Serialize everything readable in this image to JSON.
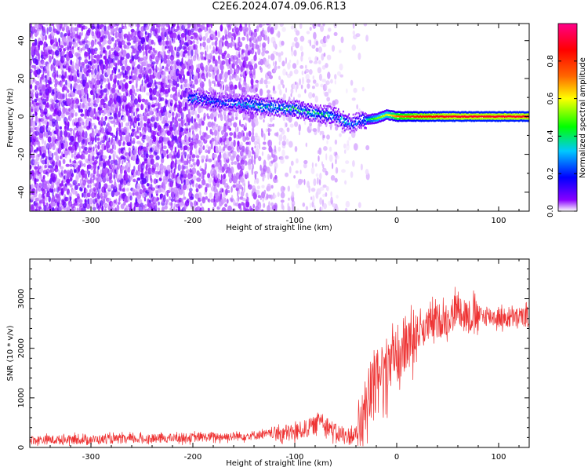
{
  "figure": {
    "title": "C2E6.2024.074.09.06.R13"
  },
  "chart_data": [
    {
      "type": "heatmap",
      "title": "C2E6.2024.074.09.06.R13",
      "xlabel": "Height of straight line (km)",
      "ylabel": "Frequency (Hz)",
      "xlim": [
        -360,
        130
      ],
      "ylim": [
        -50,
        49
      ],
      "xticks": [
        -300,
        -200,
        -100,
        0,
        100
      ],
      "yticks": [
        -40,
        -20,
        0,
        20,
        40
      ],
      "colorbar": {
        "label": "Normalized spectral amplitude",
        "range": [
          0,
          1
        ],
        "ticks": [
          "0.0",
          "0.2",
          "0.4",
          "0.6",
          "0.8"
        ],
        "colormap": [
          "#ffffff",
          "#8800ff",
          "#0000ff",
          "#00c8ff",
          "#00ff00",
          "#ffff00",
          "#ff6600",
          "#ff0000",
          "#ff00aa"
        ]
      },
      "ridge": {
        "x": [
          -205,
          -180,
          -160,
          -140,
          -120,
          -100,
          -85,
          -70,
          -60,
          -50,
          -45,
          -35,
          -20,
          -10,
          0,
          20,
          50,
          80,
          100,
          130
        ],
        "y": [
          10,
          8,
          7,
          6,
          5,
          4,
          2,
          1,
          0,
          -3,
          -4,
          -2,
          -1,
          1,
          0,
          0,
          0,
          0,
          0,
          0
        ],
        "amplitude": [
          0.35,
          0.3,
          0.3,
          0.45,
          0.4,
          0.45,
          0.4,
          0.45,
          0.35,
          0.4,
          0.3,
          0.35,
          0.55,
          0.6,
          0.75,
          0.85,
          0.9,
          0.9,
          0.9,
          0.9
        ]
      }
    },
    {
      "type": "line",
      "xlabel": "Height of straight line (km)",
      "ylabel": "SNR (10 * v/v)",
      "xlim": [
        -360,
        130
      ],
      "ylim": [
        0,
        3800
      ],
      "xticks": [
        -300,
        -200,
        -100,
        0,
        100
      ],
      "yticks": [
        0,
        1000,
        2000,
        3000
      ],
      "series": [
        {
          "name": "SNR",
          "color": "#ee3333",
          "x": [
            -360,
            -300,
            -250,
            -200,
            -150,
            -120,
            -100,
            -80,
            -75,
            -70,
            -60,
            -50,
            -40,
            -35,
            -30,
            -25,
            -20,
            -15,
            -10,
            -5,
            0,
            10,
            20,
            30,
            40,
            50,
            55,
            60,
            65,
            70,
            80,
            90,
            100,
            110,
            120,
            130
          ],
          "y": [
            150,
            160,
            170,
            200,
            230,
            280,
            300,
            450,
            600,
            480,
            300,
            220,
            250,
            450,
            900,
            1200,
            1350,
            1500,
            1600,
            1700,
            1850,
            2100,
            2300,
            2450,
            2550,
            2600,
            2700,
            2850,
            2750,
            2650,
            2650,
            2650,
            2620,
            2600,
            2620,
            2650
          ]
        }
      ]
    }
  ]
}
